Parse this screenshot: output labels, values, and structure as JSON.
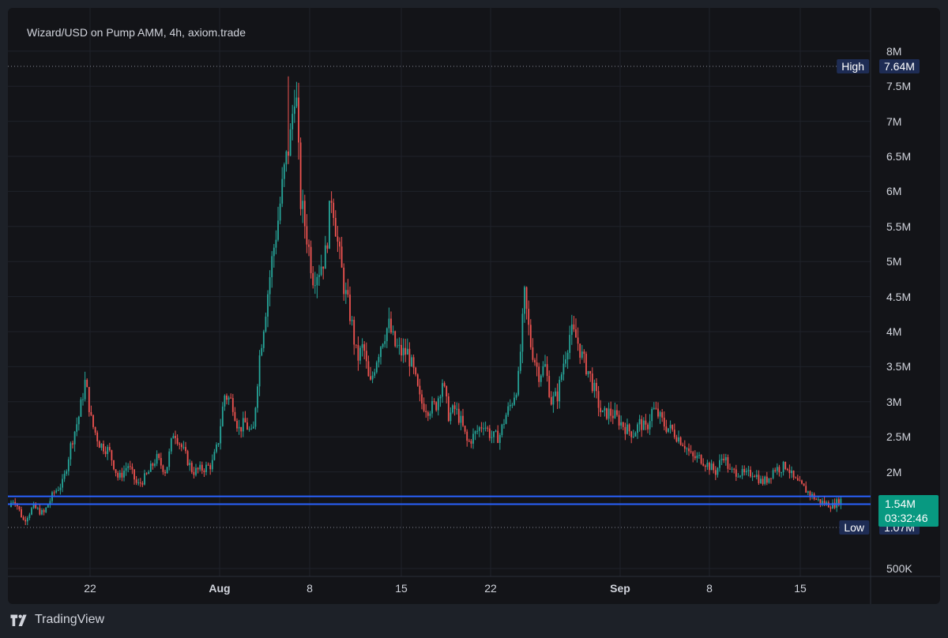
{
  "header": {
    "title": "Wizard/USD on Pump AMM, 4h, axiom.trade"
  },
  "chart_data": {
    "type": "candlestick",
    "title": "Wizard/USD on Pump AMM, 4h, axiom.trade",
    "yaxis": {
      "ticks": [
        "8M",
        "7.5M",
        "7M",
        "6.5M",
        "6M",
        "5.5M",
        "5M",
        "4.5M",
        "4M",
        "3.5M",
        "3M",
        "2.5M",
        "2M",
        "500K"
      ],
      "range": [
        500000,
        8000000
      ]
    },
    "xaxis": {
      "ticks": [
        "22",
        "Aug",
        "8",
        "15",
        "22",
        "Sep",
        "8",
        "15"
      ],
      "bold_ticks": [
        "Aug",
        "Sep"
      ]
    },
    "high": {
      "label": "High",
      "value": "7.64M"
    },
    "low": {
      "label": "Low",
      "value": "1.07M"
    },
    "last_price": {
      "value": "1.54M",
      "countdown": "03:32:46"
    },
    "horizontal_lines": [
      1650000,
      1540000
    ],
    "colors": {
      "up": "#26a69a",
      "down": "#ef5350",
      "line": "#2962ff",
      "last": "#089981"
    },
    "series_shape": [
      [
        0,
        1.5
      ],
      [
        8,
        1.62
      ],
      [
        20,
        1.3
      ],
      [
        32,
        1.5
      ],
      [
        45,
        1.4
      ],
      [
        58,
        1.7
      ],
      [
        70,
        1.85
      ],
      [
        80,
        2.4
      ],
      [
        90,
        2.8
      ],
      [
        98,
        3.3
      ],
      [
        106,
        2.7
      ],
      [
        116,
        2.4
      ],
      [
        128,
        2.3
      ],
      [
        140,
        1.9
      ],
      [
        152,
        2.1
      ],
      [
        164,
        1.8
      ],
      [
        176,
        1.95
      ],
      [
        188,
        2.2
      ],
      [
        200,
        2.0
      ],
      [
        210,
        2.6
      ],
      [
        222,
        2.3
      ],
      [
        234,
        2.0
      ],
      [
        248,
        2.05
      ],
      [
        258,
        2.1
      ],
      [
        266,
        2.4
      ],
      [
        274,
        3.1
      ],
      [
        284,
        3.0
      ],
      [
        292,
        2.6
      ],
      [
        300,
        2.7
      ],
      [
        310,
        2.5
      ],
      [
        318,
        3.6
      ],
      [
        326,
        4.3
      ],
      [
        334,
        5.0
      ],
      [
        342,
        5.6
      ],
      [
        350,
        6.3
      ],
      [
        358,
        6.8
      ],
      [
        364,
        7.64
      ],
      [
        370,
        5.9
      ],
      [
        378,
        5.4
      ],
      [
        386,
        4.8
      ],
      [
        394,
        4.9
      ],
      [
        402,
        5.1
      ],
      [
        410,
        6.0
      ],
      [
        418,
        5.2
      ],
      [
        426,
        4.6
      ],
      [
        434,
        4.2
      ],
      [
        442,
        3.6
      ],
      [
        450,
        3.8
      ],
      [
        458,
        3.2
      ],
      [
        466,
        3.6
      ],
      [
        474,
        3.9
      ],
      [
        482,
        4.1
      ],
      [
        490,
        3.8
      ],
      [
        498,
        3.7
      ],
      [
        506,
        3.7
      ],
      [
        514,
        3.4
      ],
      [
        522,
        3.0
      ],
      [
        532,
        2.9
      ],
      [
        542,
        2.95
      ],
      [
        550,
        3.3
      ],
      [
        558,
        2.8
      ],
      [
        566,
        2.9
      ],
      [
        574,
        2.7
      ],
      [
        582,
        2.4
      ],
      [
        592,
        2.55
      ],
      [
        602,
        2.7
      ],
      [
        612,
        2.5
      ],
      [
        622,
        2.5
      ],
      [
        630,
        2.8
      ],
      [
        638,
        3.0
      ],
      [
        646,
        3.3
      ],
      [
        654,
        4.5
      ],
      [
        662,
        3.8
      ],
      [
        672,
        3.4
      ],
      [
        680,
        3.5
      ],
      [
        688,
        3.0
      ],
      [
        696,
        3.1
      ],
      [
        704,
        3.6
      ],
      [
        712,
        4.0
      ],
      [
        720,
        3.9
      ],
      [
        728,
        3.6
      ],
      [
        736,
        3.4
      ],
      [
        744,
        3.1
      ],
      [
        752,
        2.8
      ],
      [
        760,
        2.85
      ],
      [
        768,
        2.8
      ],
      [
        776,
        2.7
      ],
      [
        784,
        2.6
      ],
      [
        792,
        2.55
      ],
      [
        800,
        2.7
      ],
      [
        808,
        2.6
      ],
      [
        816,
        2.9
      ],
      [
        824,
        2.8
      ],
      [
        832,
        2.65
      ],
      [
        840,
        2.6
      ],
      [
        848,
        2.5
      ],
      [
        856,
        2.4
      ],
      [
        866,
        2.2
      ],
      [
        876,
        2.2
      ],
      [
        886,
        2.1
      ],
      [
        896,
        2.0
      ],
      [
        906,
        2.25
      ],
      [
        914,
        2.0
      ],
      [
        924,
        2.0
      ],
      [
        934,
        1.95
      ],
      [
        944,
        2.0
      ],
      [
        954,
        1.85
      ],
      [
        962,
        1.9
      ],
      [
        970,
        2.05
      ],
      [
        978,
        2.05
      ],
      [
        986,
        2.1
      ],
      [
        994,
        1.9
      ],
      [
        1004,
        1.8
      ],
      [
        1014,
        1.7
      ],
      [
        1024,
        1.6
      ],
      [
        1034,
        1.55
      ],
      [
        1044,
        1.52
      ],
      [
        1054,
        1.6
      ],
      [
        1066,
        1.54
      ]
    ]
  },
  "footer": {
    "brand": "TradingView"
  }
}
